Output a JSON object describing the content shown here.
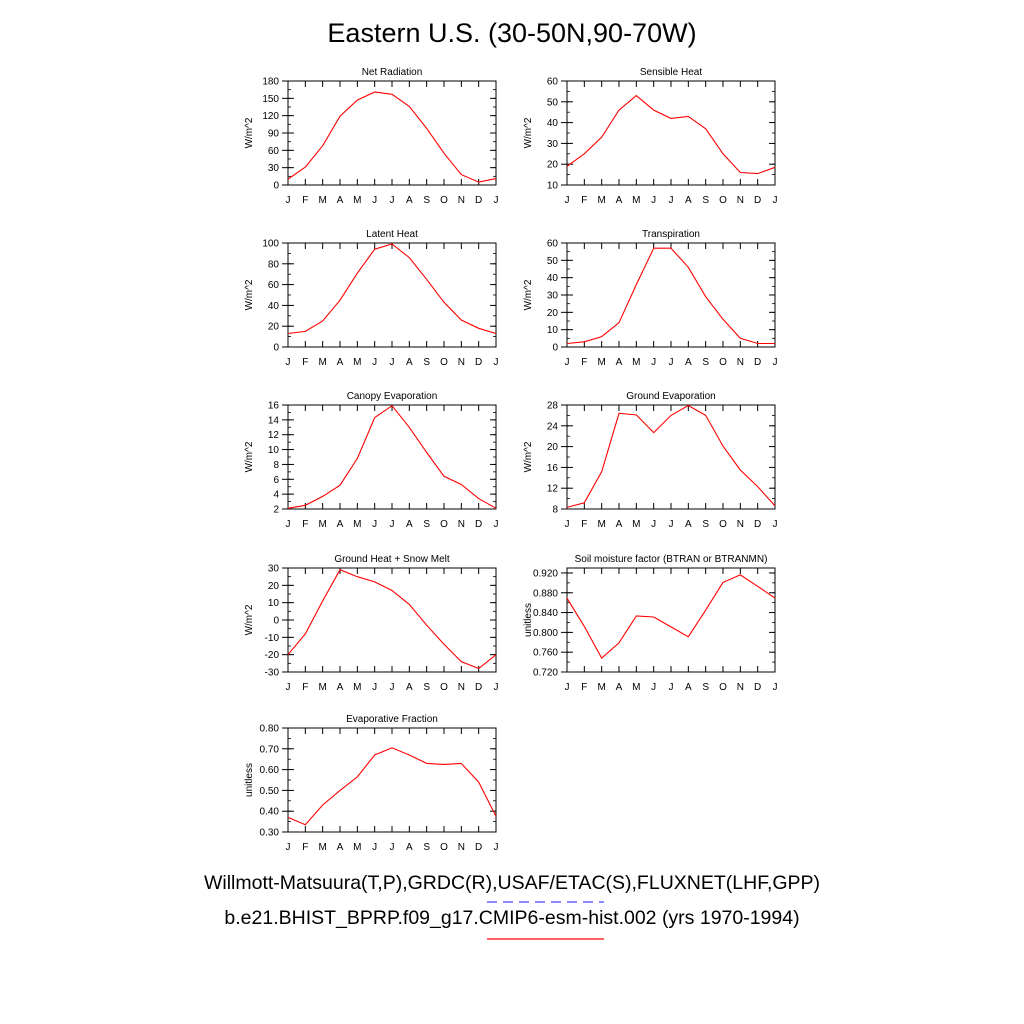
{
  "title": "Eastern U.S. (30-50N,90-70W)",
  "legend": {
    "observed_label": "Willmott-Matsuura(T,P),GRDC(R),USAF/ETAC(S),FLUXNET(LHF,GPP)",
    "observed_color": "#4444ff",
    "model_label": "b.e21.BHIST_BPRP.f09_g17.CMIP6-esm-hist.002 (yrs 1970-1994)",
    "model_color": "#ff0000"
  },
  "chart_data": [
    {
      "type": "line",
      "title": "Net Radiation",
      "ylabel": "W/m^2",
      "x": [
        "J",
        "F",
        "M",
        "A",
        "M",
        "J",
        "J",
        "A",
        "S",
        "O",
        "N",
        "D",
        "J"
      ],
      "ylim": [
        0,
        180
      ],
      "yticks": [
        "0",
        "30",
        "60",
        "90",
        "120",
        "150",
        "180"
      ],
      "series": [
        {
          "values": [
            10,
            31,
            68,
            119,
            147,
            161,
            157,
            136,
            98,
            55,
            18,
            5,
            11
          ],
          "color": "#ff0000"
        }
      ]
    },
    {
      "type": "line",
      "title": "Sensible Heat",
      "ylabel": "W/m^2",
      "x": [
        "J",
        "F",
        "M",
        "A",
        "M",
        "J",
        "J",
        "A",
        "S",
        "O",
        "N",
        "D",
        "J"
      ],
      "ylim": [
        10,
        60
      ],
      "yticks": [
        "10",
        "20",
        "30",
        "40",
        "50",
        "60"
      ],
      "series": [
        {
          "values": [
            19,
            25,
            33,
            46,
            53,
            46,
            42,
            43,
            37,
            25,
            16,
            15.5,
            18.5
          ],
          "color": "#ff0000"
        }
      ]
    },
    {
      "type": "line",
      "title": "Latent Heat",
      "ylabel": "W/m^2",
      "x": [
        "J",
        "F",
        "M",
        "A",
        "M",
        "J",
        "J",
        "A",
        "S",
        "O",
        "N",
        "D",
        "J"
      ],
      "ylim": [
        0,
        100
      ],
      "yticks": [
        "0",
        "20",
        "40",
        "60",
        "80",
        "100"
      ],
      "series": [
        {
          "values": [
            13,
            15,
            25,
            45,
            71,
            94,
            99,
            86,
            65,
            43,
            26,
            18,
            13
          ],
          "color": "#ff0000"
        }
      ]
    },
    {
      "type": "line",
      "title": "Transpiration",
      "ylabel": "W/m^2",
      "x": [
        "J",
        "F",
        "M",
        "A",
        "M",
        "J",
        "J",
        "A",
        "S",
        "O",
        "N",
        "D",
        "J"
      ],
      "ylim": [
        0,
        60
      ],
      "yticks": [
        "0",
        "10",
        "20",
        "30",
        "40",
        "50",
        "60"
      ],
      "series": [
        {
          "values": [
            2,
            3,
            6,
            14,
            36,
            57,
            57,
            46,
            29,
            16,
            5,
            2,
            2
          ],
          "color": "#ff0000"
        }
      ]
    },
    {
      "type": "line",
      "title": "Canopy Evaporation",
      "ylabel": "W/m^2",
      "x": [
        "J",
        "F",
        "M",
        "A",
        "M",
        "J",
        "J",
        "A",
        "S",
        "O",
        "N",
        "D",
        "J"
      ],
      "ylim": [
        2,
        16
      ],
      "yticks": [
        "2",
        "4",
        "6",
        "8",
        "10",
        "12",
        "14",
        "16"
      ],
      "series": [
        {
          "values": [
            2.1,
            2.5,
            3.7,
            5.2,
            8.8,
            14.3,
            15.9,
            13.0,
            9.6,
            6.4,
            5.3,
            3.4,
            2.1
          ],
          "color": "#ff0000"
        }
      ]
    },
    {
      "type": "line",
      "title": "Ground Evaporation",
      "ylabel": "W/m^2",
      "x": [
        "J",
        "F",
        "M",
        "A",
        "M",
        "J",
        "J",
        "A",
        "S",
        "O",
        "N",
        "D",
        "J"
      ],
      "ylim": [
        8,
        28
      ],
      "yticks": [
        "8",
        "12",
        "16",
        "20",
        "24",
        "28"
      ],
      "series": [
        {
          "values": [
            8.3,
            9.2,
            15.2,
            26.4,
            26.1,
            22.7,
            26.0,
            27.9,
            26.0,
            20.1,
            15.5,
            12.3,
            8.6
          ],
          "color": "#ff0000"
        }
      ]
    },
    {
      "type": "line",
      "title": "Ground Heat + Snow Melt",
      "ylabel": "W/m^2",
      "x": [
        "J",
        "F",
        "M",
        "A",
        "M",
        "J",
        "J",
        "A",
        "S",
        "O",
        "N",
        "D",
        "J"
      ],
      "ylim": [
        -30,
        30
      ],
      "yticks": [
        "-30",
        "-20",
        "-10",
        "0",
        "10",
        "20",
        "30"
      ],
      "series": [
        {
          "values": [
            -20,
            -8,
            11,
            29,
            25,
            22,
            17,
            9,
            -3,
            -14,
            -24,
            -28,
            -20
          ],
          "color": "#ff0000"
        }
      ]
    },
    {
      "type": "line",
      "title": "Soil moisture factor (BTRAN or BTRANMN)",
      "ylabel": "unitless",
      "x": [
        "J",
        "F",
        "M",
        "A",
        "M",
        "J",
        "J",
        "A",
        "S",
        "O",
        "N",
        "D",
        "J"
      ],
      "ylim": [
        0.72,
        0.93
      ],
      "yticks": [
        "0.720",
        "0.760",
        "0.800",
        "0.840",
        "0.880",
        "0.920"
      ],
      "series": [
        {
          "values": [
            0.869,
            0.812,
            0.748,
            0.779,
            0.833,
            0.831,
            0.811,
            0.791,
            0.845,
            0.901,
            0.916,
            0.893,
            0.869
          ],
          "color": "#ff0000"
        }
      ]
    },
    {
      "type": "line",
      "title": "Evaporative Fraction",
      "ylabel": "unitless",
      "x": [
        "J",
        "F",
        "M",
        "A",
        "M",
        "J",
        "J",
        "A",
        "S",
        "O",
        "N",
        "D",
        "J"
      ],
      "ylim": [
        0.3,
        0.8
      ],
      "yticks": [
        "0.30",
        "0.40",
        "0.50",
        "0.60",
        "0.70",
        "0.80"
      ],
      "series": [
        {
          "values": [
            0.37,
            0.335,
            0.43,
            0.5,
            0.565,
            0.67,
            0.705,
            0.67,
            0.63,
            0.625,
            0.63,
            0.54,
            0.375
          ],
          "color": "#ff0000"
        }
      ]
    }
  ]
}
